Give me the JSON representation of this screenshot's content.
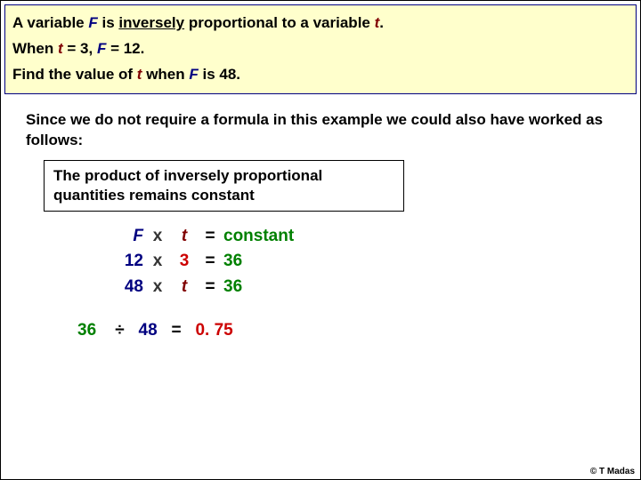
{
  "problem": {
    "line1_pre": "A variable ",
    "line1_mid1": " is ",
    "line1_underline": "inversely",
    "line1_mid2": " proportional to a variable ",
    "line1_end": ".",
    "line2_pre": "When ",
    "line2_eq1a": " = 3, ",
    "line2_eq1b": " = 12.",
    "line3_pre": "Find the value of ",
    "line3_mid": "  when ",
    "line3_end": "  is 48.",
    "F": "F",
    "t": "t"
  },
  "explain": "Since we do not require a formula in this example we could also have worked as follows:",
  "rule": "The product of inversely proportional quantities remains constant",
  "eq": {
    "r1": {
      "l": "F",
      "m": "t",
      "r": "constant"
    },
    "r2": {
      "l": "12",
      "m": "3",
      "r": "36"
    },
    "r3": {
      "l": "48",
      "m": "t",
      "r": "36"
    },
    "x": "x",
    "eq": "="
  },
  "final": {
    "a": "36",
    "div": "÷",
    "b": "48",
    "eq": "=",
    "ans": "0. 75"
  },
  "copyright": "© T Madas",
  "colors": {
    "navy": "#000080",
    "maroon": "#800000",
    "red": "#cc0000",
    "green": "#008000",
    "boxbg": "#ffffcc"
  }
}
